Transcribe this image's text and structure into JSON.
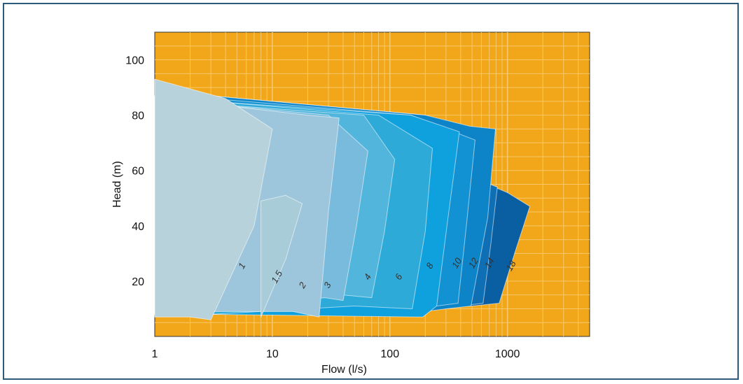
{
  "chart_data": {
    "type": "area",
    "xlabel": "Flow (l/s)",
    "ylabel": "Head (m)",
    "x_scale": "log",
    "xlim": [
      1,
      5000
    ],
    "ylim": [
      0,
      110
    ],
    "x_ticks": [
      1,
      10,
      100,
      1000
    ],
    "y_ticks": [
      20,
      40,
      60,
      80,
      100
    ],
    "grid": true,
    "colors": {
      "background": "#F2A71B",
      "grid": "#F7C86A"
    },
    "series": [
      {
        "name": "18",
        "color": "#0A5FA3",
        "top": [
          [
            3,
            87
          ],
          [
            200,
            80
          ],
          [
            600,
            56
          ],
          [
            1000,
            52
          ],
          [
            1550,
            47
          ]
        ],
        "right": [
          [
            1550,
            47
          ],
          [
            1150,
            30
          ],
          [
            850,
            12
          ]
        ],
        "bottom": [
          [
            850,
            12
          ],
          [
            500,
            11
          ],
          [
            200,
            10
          ],
          [
            3,
            9
          ]
        ]
      },
      {
        "name": "14",
        "color": "#0E6FB5",
        "top": [
          [
            3,
            87
          ],
          [
            200,
            80
          ],
          [
            620,
            56
          ],
          [
            820,
            54
          ]
        ],
        "right": [
          [
            820,
            54
          ],
          [
            720,
            33
          ],
          [
            620,
            12
          ]
        ],
        "bottom": [
          [
            620,
            12
          ],
          [
            400,
            11
          ],
          [
            200,
            10
          ],
          [
            3,
            9
          ]
        ]
      },
      {
        "name": "12",
        "color": "#0D83C8",
        "top": [
          [
            3,
            87
          ],
          [
            200,
            80
          ],
          [
            480,
            76
          ],
          [
            790,
            75
          ]
        ],
        "right": [
          [
            790,
            75
          ],
          [
            680,
            43
          ],
          [
            490,
            11
          ]
        ],
        "bottom": [
          [
            490,
            11
          ],
          [
            300,
            10
          ],
          [
            200,
            9
          ],
          [
            3,
            8
          ]
        ]
      },
      {
        "name": "10",
        "color": "#1392D3",
        "top": [
          [
            3,
            86
          ],
          [
            150,
            80
          ],
          [
            530,
            71
          ]
        ],
        "right": [
          [
            530,
            71
          ],
          [
            450,
            41
          ],
          [
            380,
            12
          ]
        ],
        "bottom": [
          [
            380,
            12
          ],
          [
            250,
            11
          ],
          [
            3,
            8
          ]
        ]
      },
      {
        "name": "8",
        "color": "#0FA0DE",
        "top": [
          [
            3,
            85
          ],
          [
            150,
            80
          ],
          [
            390,
            74
          ]
        ],
        "right": [
          [
            390,
            74
          ],
          [
            310,
            42
          ],
          [
            250,
            11
          ]
        ],
        "bottom": [
          [
            250,
            11
          ],
          [
            190,
            7
          ],
          [
            3,
            8
          ]
        ]
      },
      {
        "name": "6",
        "color": "#2DAAD8",
        "top": [
          [
            3,
            85
          ],
          [
            80,
            80
          ],
          [
            230,
            68
          ]
        ],
        "right": [
          [
            230,
            68
          ],
          [
            200,
            38
          ],
          [
            155,
            10
          ]
        ],
        "bottom": [
          [
            155,
            10
          ],
          [
            50,
            11
          ],
          [
            3,
            8
          ]
        ]
      },
      {
        "name": "4",
        "color": "#52B5DC",
        "top": [
          [
            3,
            84
          ],
          [
            60,
            80
          ],
          [
            110,
            64
          ]
        ],
        "right": [
          [
            110,
            64
          ],
          [
            90,
            38
          ],
          [
            70,
            14
          ]
        ],
        "bottom": [
          [
            70,
            14
          ],
          [
            40,
            15
          ],
          [
            3,
            10
          ]
        ]
      },
      {
        "name": "3",
        "color": "#79BBDD",
        "top": [
          [
            3,
            84
          ],
          [
            30,
            80
          ],
          [
            65,
            67
          ]
        ],
        "right": [
          [
            65,
            67
          ],
          [
            52,
            40
          ],
          [
            40,
            13
          ]
        ],
        "bottom": [
          [
            40,
            13
          ],
          [
            28,
            14
          ],
          [
            3,
            10
          ]
        ]
      },
      {
        "name": "2",
        "color": "#9DC6DC",
        "top": [
          [
            3,
            84
          ],
          [
            20,
            80
          ],
          [
            37,
            79
          ]
        ],
        "right": [
          [
            37,
            79
          ],
          [
            30,
            45
          ],
          [
            25,
            7
          ]
        ],
        "bottom": [
          [
            25,
            7
          ],
          [
            15,
            9
          ],
          [
            3,
            9
          ]
        ]
      },
      {
        "name": "1.5",
        "color": "#A9CCD9",
        "top": [
          [
            8,
            49
          ],
          [
            13,
            51
          ],
          [
            18,
            48
          ]
        ],
        "right": [
          [
            18,
            48
          ],
          [
            13,
            28
          ],
          [
            8,
            7
          ]
        ]
      },
      {
        "name": "1",
        "color": "#B8D2DC",
        "top": [
          [
            1,
            93
          ],
          [
            4,
            86
          ],
          [
            10,
            75
          ]
        ],
        "right": [
          [
            10,
            75
          ],
          [
            7,
            40
          ],
          [
            3,
            6
          ]
        ],
        "bottom": [
          [
            3,
            6
          ],
          [
            2,
            7
          ],
          [
            1,
            7
          ]
        ]
      }
    ],
    "labels": [
      {
        "text": "1",
        "x": 5.8,
        "y": 25
      },
      {
        "text": "1.5",
        "x": 11.5,
        "y": 21
      },
      {
        "text": "2",
        "x": 19,
        "y": 18
      },
      {
        "text": "3",
        "x": 31,
        "y": 18
      },
      {
        "text": "4",
        "x": 68,
        "y": 21
      },
      {
        "text": "6",
        "x": 125,
        "y": 21
      },
      {
        "text": "8",
        "x": 230,
        "y": 25
      },
      {
        "text": "10",
        "x": 390,
        "y": 26
      },
      {
        "text": "12",
        "x": 540,
        "y": 26
      },
      {
        "text": "14",
        "x": 740,
        "y": 26
      },
      {
        "text": "18",
        "x": 1130,
        "y": 25
      }
    ]
  }
}
